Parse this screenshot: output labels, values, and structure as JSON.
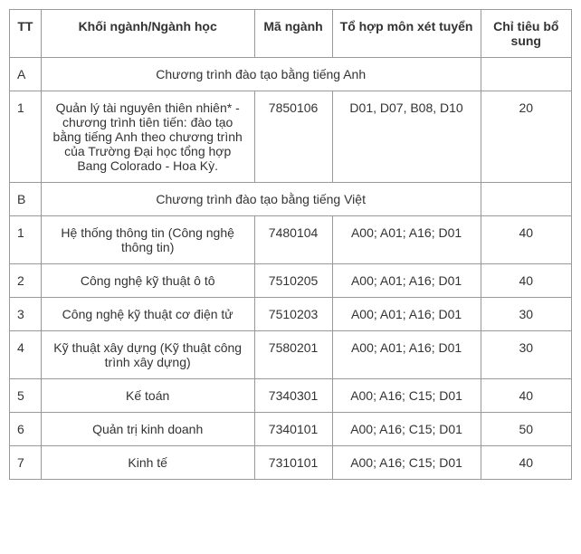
{
  "headers": {
    "tt": "TT",
    "name": "Khối ngành/Ngành học",
    "code": "Mã ngành",
    "combo": "Tổ hợp môn xét tuyển",
    "quota": "Chỉ tiêu bổ sung"
  },
  "sections": [
    {
      "label": "A",
      "title": "Chương trình đào tạo bằng tiếng Anh",
      "rows": [
        {
          "tt": "1",
          "name": "Quản lý tài nguyên thiên nhiên* - chương trình tiên tiến: đào tạo bằng tiếng Anh theo chương trình của Trường Đại học tổng hợp Bang Colorado - Hoa Kỳ.",
          "code": "7850106",
          "combo": "D01, D07, B08, D10",
          "quota": "20"
        }
      ]
    },
    {
      "label": "B",
      "title": "Chương trình đào tạo bằng tiếng Việt",
      "rows": [
        {
          "tt": "1",
          "name": "Hệ thống thông tin (Công nghệ thông tin)",
          "code": "7480104",
          "combo": "A00; A01; A16; D01",
          "quota": "40"
        },
        {
          "tt": "2",
          "name": "Công nghệ kỹ thuật ô tô",
          "code": "7510205",
          "combo": "A00; A01; A16; D01",
          "quota": "40"
        },
        {
          "tt": "3",
          "name": "Công nghệ kỹ thuật cơ điện tử",
          "code": "7510203",
          "combo": "A00; A01; A16; D01",
          "quota": "30"
        },
        {
          "tt": "4",
          "name": "Kỹ thuật xây dựng (Kỹ thuật công trình xây dựng)",
          "code": "7580201",
          "combo": "A00; A01; A16; D01",
          "quota": "30"
        },
        {
          "tt": "5",
          "name": "Kế toán",
          "code": "7340301",
          "combo": "A00; A16; C15; D01",
          "quota": "40"
        },
        {
          "tt": "6",
          "name": "Quản trị kinh doanh",
          "code": "7340101",
          "combo": "A00; A16; C15; D01",
          "quota": "50"
        },
        {
          "tt": "7",
          "name": "Kinh tế",
          "code": "7310101",
          "combo": "A00; A16; C15; D01",
          "quota": "40"
        }
      ]
    }
  ]
}
